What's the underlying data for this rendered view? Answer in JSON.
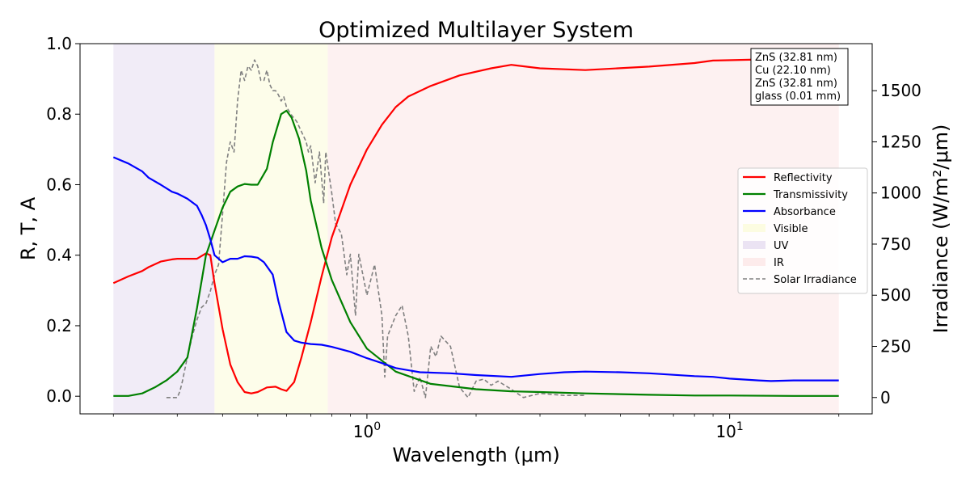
{
  "chart_data": {
    "type": "line",
    "title": "Optimized Multilayer System",
    "xlabel": "Wavelength (μm)",
    "ylabel": "R, T, A",
    "y2label": "Irradiance (W/m²/μm)",
    "xscale": "log",
    "xlim": [
      0.2,
      20
    ],
    "ylim": [
      -0.05,
      1.0
    ],
    "y2lim": [
      -80,
      1730
    ],
    "x_ticks": [
      {
        "value": 1,
        "label": "10^0"
      },
      {
        "value": 10,
        "label": "10^1"
      }
    ],
    "y_ticks": [
      "0.0",
      "0.2",
      "0.4",
      "0.6",
      "0.8",
      "1.0"
    ],
    "y2_ticks": [
      "0",
      "250",
      "500",
      "750",
      "1000",
      "1250",
      "1500"
    ],
    "grid": false,
    "legend_position": "center-right",
    "layer_stack": [
      "ZnS (32.81 nm)",
      "Cu (22.10 nm)",
      "ZnS (32.81 nm)",
      "glass (0.01 mm)"
    ],
    "bands": [
      {
        "name": "UV",
        "range": [
          0.2,
          0.38
        ],
        "color": "#e6dcf0"
      },
      {
        "name": "Visible",
        "range": [
          0.38,
          0.78
        ],
        "color": "#fbfbd9"
      },
      {
        "name": "IR",
        "range": [
          0.78,
          20
        ],
        "color": "#fce6e6"
      }
    ],
    "series": [
      {
        "name": "Reflectivity",
        "color": "#ff0000",
        "style": "solid",
        "x": [
          0.2,
          0.22,
          0.24,
          0.25,
          0.27,
          0.29,
          0.3,
          0.32,
          0.34,
          0.36,
          0.37,
          0.38,
          0.4,
          0.42,
          0.44,
          0.46,
          0.48,
          0.5,
          0.53,
          0.56,
          0.58,
          0.6,
          0.63,
          0.66,
          0.7,
          0.75,
          0.8,
          0.9,
          1.0,
          1.1,
          1.2,
          1.3,
          1.5,
          1.8,
          2.2,
          2.5,
          3.0,
          4.0,
          6.0,
          8.0,
          9.0,
          12.0,
          15.0,
          20.0
        ],
        "values": [
          0.321,
          0.34,
          0.355,
          0.366,
          0.382,
          0.388,
          0.39,
          0.39,
          0.39,
          0.405,
          0.4,
          0.32,
          0.19,
          0.09,
          0.04,
          0.012,
          0.008,
          0.012,
          0.025,
          0.027,
          0.02,
          0.015,
          0.04,
          0.11,
          0.21,
          0.34,
          0.45,
          0.6,
          0.7,
          0.77,
          0.82,
          0.85,
          0.88,
          0.91,
          0.93,
          0.94,
          0.93,
          0.925,
          0.935,
          0.945,
          0.952,
          0.955,
          0.957,
          0.957
        ]
      },
      {
        "name": "Transmissivity",
        "color": "#008000",
        "style": "solid",
        "x": [
          0.2,
          0.22,
          0.24,
          0.26,
          0.28,
          0.3,
          0.32,
          0.34,
          0.36,
          0.38,
          0.4,
          0.42,
          0.44,
          0.46,
          0.48,
          0.5,
          0.53,
          0.55,
          0.58,
          0.6,
          0.62,
          0.65,
          0.68,
          0.7,
          0.75,
          0.8,
          0.9,
          1.0,
          1.2,
          1.5,
          2.0,
          2.5,
          3.0,
          4.0,
          6.0,
          8.0,
          10.0,
          15.0,
          20.0
        ],
        "values": [
          0.001,
          0.001,
          0.008,
          0.025,
          0.045,
          0.07,
          0.11,
          0.25,
          0.4,
          0.47,
          0.535,
          0.58,
          0.595,
          0.602,
          0.6,
          0.6,
          0.645,
          0.72,
          0.8,
          0.81,
          0.79,
          0.73,
          0.64,
          0.555,
          0.42,
          0.33,
          0.21,
          0.135,
          0.07,
          0.035,
          0.02,
          0.014,
          0.012,
          0.008,
          0.004,
          0.002,
          0.002,
          0.001,
          0.001
        ]
      },
      {
        "name": "Absorbance",
        "color": "#0000ff",
        "style": "solid",
        "x": [
          0.2,
          0.22,
          0.24,
          0.25,
          0.27,
          0.29,
          0.3,
          0.32,
          0.34,
          0.35,
          0.36,
          0.37,
          0.38,
          0.4,
          0.42,
          0.44,
          0.46,
          0.48,
          0.5,
          0.52,
          0.55,
          0.57,
          0.6,
          0.63,
          0.66,
          0.7,
          0.75,
          0.8,
          0.9,
          1.0,
          1.1,
          1.2,
          1.4,
          1.7,
          2.0,
          2.5,
          3.0,
          3.5,
          4.0,
          5.0,
          6.0,
          8.0,
          9.0,
          10.0,
          12.0,
          13.0,
          15.0,
          20.0
        ],
        "values": [
          0.678,
          0.66,
          0.638,
          0.62,
          0.6,
          0.58,
          0.575,
          0.56,
          0.54,
          0.515,
          0.485,
          0.445,
          0.4,
          0.38,
          0.39,
          0.39,
          0.397,
          0.396,
          0.393,
          0.38,
          0.345,
          0.27,
          0.182,
          0.158,
          0.152,
          0.148,
          0.146,
          0.14,
          0.126,
          0.108,
          0.094,
          0.08,
          0.068,
          0.065,
          0.06,
          0.055,
          0.063,
          0.068,
          0.07,
          0.068,
          0.065,
          0.057,
          0.055,
          0.05,
          0.045,
          0.043,
          0.045,
          0.045
        ]
      },
      {
        "name": "Solar Irradiance",
        "color": "#808080",
        "style": "dashed",
        "axis": "right",
        "x": [
          0.28,
          0.3,
          0.305,
          0.31,
          0.32,
          0.33,
          0.34,
          0.35,
          0.36,
          0.37,
          0.38,
          0.39,
          0.4,
          0.41,
          0.42,
          0.43,
          0.44,
          0.45,
          0.46,
          0.47,
          0.48,
          0.49,
          0.5,
          0.51,
          0.52,
          0.53,
          0.54,
          0.55,
          0.56,
          0.57,
          0.58,
          0.59,
          0.6,
          0.62,
          0.64,
          0.66,
          0.68,
          0.69,
          0.7,
          0.72,
          0.74,
          0.76,
          0.77,
          0.8,
          0.82,
          0.85,
          0.88,
          0.9,
          0.93,
          0.95,
          1.0,
          1.05,
          1.1,
          1.12,
          1.14,
          1.2,
          1.25,
          1.3,
          1.35,
          1.4,
          1.45,
          1.5,
          1.55,
          1.6,
          1.7,
          1.8,
          1.9,
          2.0,
          2.1,
          2.2,
          2.3,
          2.5,
          2.7,
          3.0,
          3.5,
          4.0
        ],
        "values": [
          0,
          0,
          30,
          80,
          200,
          300,
          380,
          440,
          460,
          520,
          600,
          650,
          900,
          1150,
          1250,
          1200,
          1450,
          1600,
          1550,
          1620,
          1600,
          1650,
          1620,
          1550,
          1550,
          1600,
          1530,
          1500,
          1500,
          1480,
          1450,
          1470,
          1420,
          1380,
          1350,
          1300,
          1250,
          1200,
          1230,
          1050,
          1200,
          950,
          1200,
          1000,
          850,
          800,
          600,
          700,
          400,
          700,
          500,
          650,
          400,
          100,
          300,
          400,
          450,
          300,
          30,
          100,
          0,
          250,
          200,
          300,
          250,
          50,
          0,
          80,
          90,
          60,
          80,
          40,
          0,
          20,
          10,
          10
        ]
      }
    ]
  }
}
